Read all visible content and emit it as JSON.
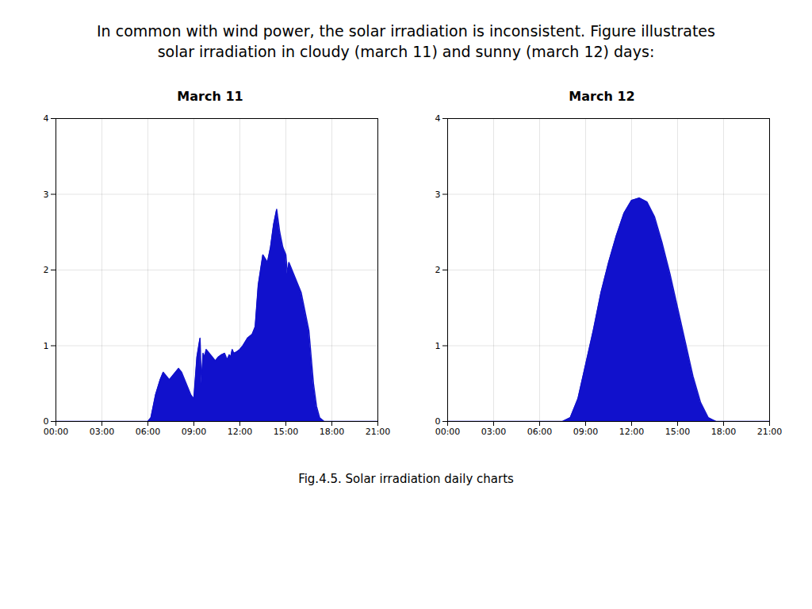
{
  "title": "In common with wind power, the solar irradiation is inconsistent. Figure illustrates",
  "subtitle": "solar irradiation in cloudy (march 11) and sunny (march 12) days:",
  "caption": "Fig.4.5. Solar irradiation daily charts",
  "chart_data": [
    {
      "type": "area",
      "title": "March 11",
      "color": "#1111cc",
      "x": [
        0,
        6.0,
        6.2,
        6.5,
        6.8,
        7.0,
        7.2,
        7.4,
        7.6,
        7.8,
        8.0,
        8.2,
        8.4,
        8.6,
        8.8,
        9.0,
        9.2,
        9.4,
        9.5,
        9.6,
        9.7,
        9.8,
        10.0,
        10.2,
        10.4,
        10.6,
        10.8,
        11.0,
        11.1,
        11.2,
        11.3,
        11.4,
        11.5,
        11.6,
        11.8,
        12.0,
        12.2,
        12.5,
        12.8,
        13.0,
        13.2,
        13.5,
        13.8,
        14.0,
        14.2,
        14.4,
        14.6,
        14.8,
        15.0,
        15.1,
        15.2,
        15.4,
        15.6,
        15.8,
        16.0,
        16.2,
        16.5,
        16.8,
        17.0,
        17.2,
        17.5,
        18.0,
        21
      ],
      "values": [
        0,
        0,
        0.05,
        0.35,
        0.55,
        0.65,
        0.6,
        0.55,
        0.6,
        0.65,
        0.7,
        0.65,
        0.55,
        0.45,
        0.35,
        0.3,
        0.85,
        1.1,
        0.5,
        0.9,
        0.85,
        0.95,
        0.9,
        0.85,
        0.8,
        0.85,
        0.88,
        0.9,
        0.85,
        0.82,
        0.88,
        0.85,
        0.95,
        0.9,
        0.92,
        0.95,
        1.0,
        1.1,
        1.15,
        1.25,
        1.8,
        2.2,
        2.1,
        2.3,
        2.6,
        2.8,
        2.5,
        2.3,
        2.2,
        1.95,
        2.1,
        2.0,
        1.9,
        1.8,
        1.7,
        1.5,
        1.2,
        0.5,
        0.2,
        0.05,
        0.0,
        0,
        0
      ],
      "xlim": [
        0,
        21
      ],
      "xticks": [
        {
          "value": 0,
          "label": "00:00"
        },
        {
          "value": 3,
          "label": "03:00"
        },
        {
          "value": 6,
          "label": "06:00"
        },
        {
          "value": 9,
          "label": "09:00"
        },
        {
          "value": 12,
          "label": "12:00"
        },
        {
          "value": 15,
          "label": "15:00"
        },
        {
          "value": 18,
          "label": "18:00"
        },
        {
          "value": 21,
          "label": "21:00"
        }
      ],
      "ylim": [
        0,
        4
      ],
      "yticks": [
        0,
        1,
        2,
        3,
        4
      ],
      "grid": true
    },
    {
      "type": "area",
      "title": "March 12",
      "color": "#1111cc",
      "x": [
        0,
        7.5,
        8.0,
        8.5,
        9.0,
        9.5,
        10.0,
        10.5,
        11.0,
        11.5,
        12.0,
        12.5,
        13.0,
        13.5,
        14.0,
        14.5,
        15.0,
        15.5,
        16.0,
        16.5,
        17.0,
        17.3,
        17.5,
        21
      ],
      "values": [
        0,
        0,
        0.05,
        0.3,
        0.75,
        1.2,
        1.7,
        2.1,
        2.45,
        2.75,
        2.92,
        2.95,
        2.9,
        2.7,
        2.35,
        1.95,
        1.5,
        1.05,
        0.6,
        0.25,
        0.05,
        0.02,
        0.0,
        0
      ],
      "xlim": [
        0,
        21
      ],
      "xticks": [
        {
          "value": 0,
          "label": "00:00"
        },
        {
          "value": 3,
          "label": "03:00"
        },
        {
          "value": 6,
          "label": "06:00"
        },
        {
          "value": 9,
          "label": "09:00"
        },
        {
          "value": 12,
          "label": "12:00"
        },
        {
          "value": 15,
          "label": "15:00"
        },
        {
          "value": 18,
          "label": "18:00"
        },
        {
          "value": 21,
          "label": "21:00"
        }
      ],
      "ylim": [
        0,
        4
      ],
      "yticks": [
        0,
        1,
        2,
        3,
        4
      ],
      "grid": true
    }
  ]
}
